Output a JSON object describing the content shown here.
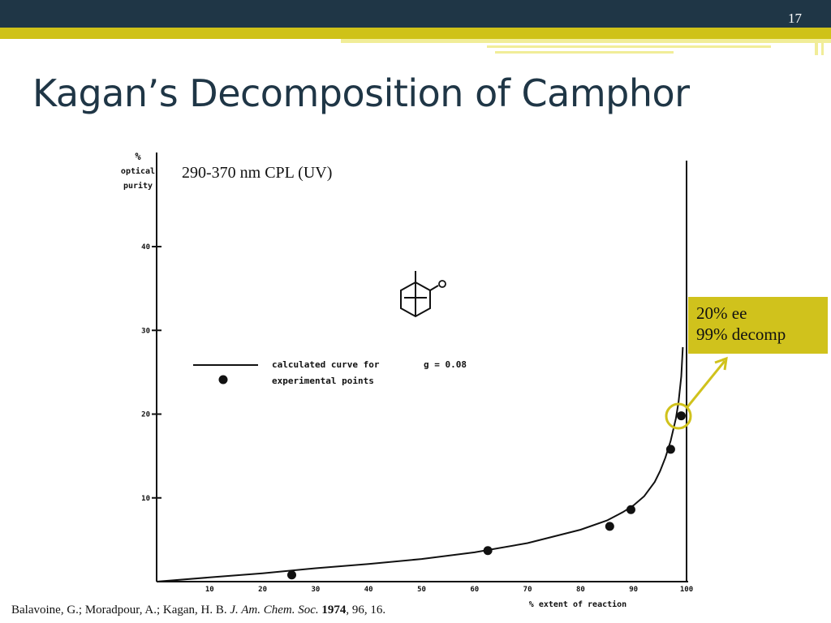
{
  "slide": {
    "number": "17",
    "title": "Kagan’s Decomposition of Camphor",
    "accent_color": "#d0c21c",
    "header_color": "#1f3646"
  },
  "chart_data": {
    "type": "scatter",
    "annotation": "290-370 nm CPL (UV)",
    "ylabel": [
      "%",
      "optical",
      "purity"
    ],
    "xlabel": "% extent of reaction",
    "xlim": [
      0,
      100
    ],
    "ylim": [
      0,
      45
    ],
    "x_ticks": [
      "10",
      "20",
      "30",
      "40",
      "50",
      "60",
      "70",
      "80",
      "90",
      "100"
    ],
    "y_ticks": [
      "10",
      "20",
      "30",
      "40"
    ],
    "grid": false,
    "legend": {
      "curve_label": "calculated curve for",
      "curve_param": "g = 0.08",
      "points_label": "experimental points"
    },
    "series": [
      {
        "name": "experimental points",
        "kind": "points",
        "x": [
          25.5,
          62.5,
          85.5,
          89.5,
          97,
          99
        ],
        "y": [
          0.8,
          3.7,
          6.6,
          8.6,
          15.8,
          19.8
        ]
      },
      {
        "name": "calculated curve for",
        "kind": "curve",
        "x": [
          0,
          10,
          20,
          30,
          40,
          50,
          60,
          70,
          80,
          85,
          88,
          90,
          92,
          94,
          95,
          96,
          97,
          98,
          98.5,
          99,
          99.3
        ],
        "y": [
          0,
          0.5,
          1.0,
          1.6,
          2.1,
          2.7,
          3.5,
          4.6,
          6.2,
          7.3,
          8.3,
          9.1,
          10.2,
          11.9,
          13.2,
          14.8,
          16.8,
          19.5,
          21.5,
          24.5,
          28
        ]
      }
    ]
  },
  "callout": {
    "line1": "20% ee",
    "line2": "99% decomp"
  },
  "citation": {
    "authors": "Balavoine, G.; Moradpour, A.; Kagan, H. B.",
    "journal": "J. Am. Chem. Soc.",
    "year": "1974",
    "rest": ", 96, 16."
  }
}
